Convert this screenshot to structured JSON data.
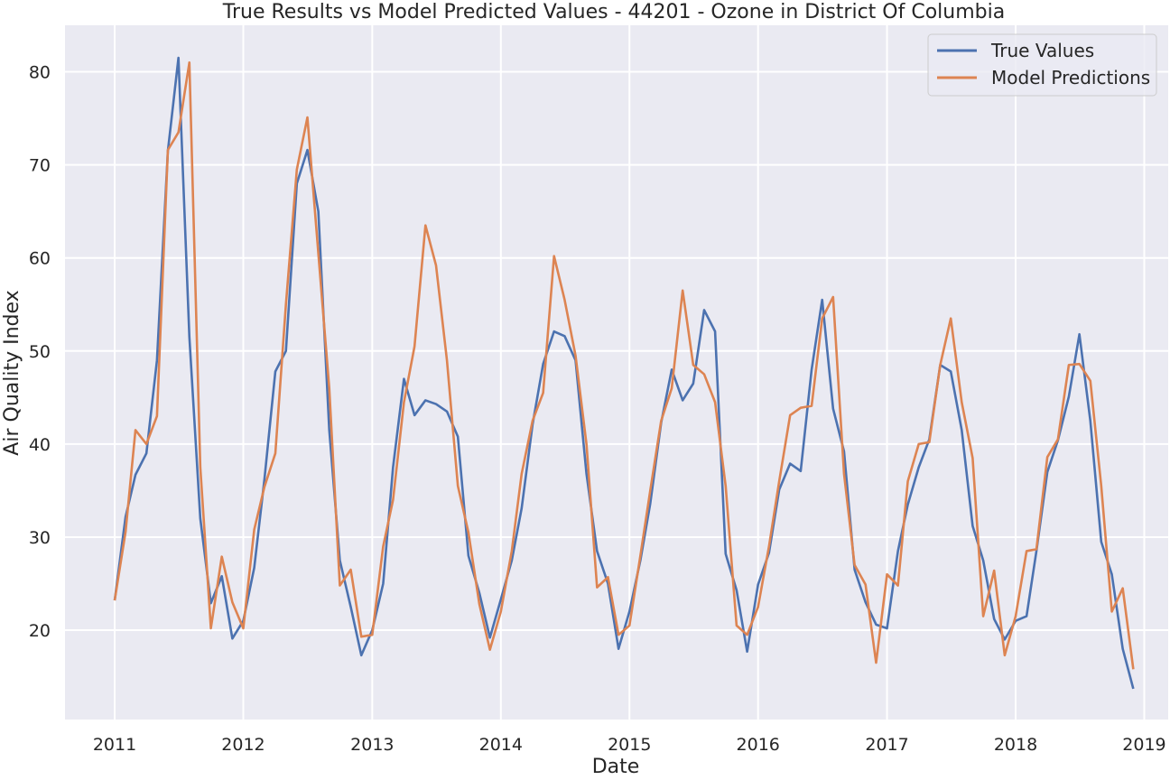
{
  "colors": {
    "plot_background": "#eaeaf2",
    "grid": "#ffffff",
    "true_values": "#4c72b0",
    "model_predictions": "#dd8452"
  },
  "chart_data": {
    "type": "line",
    "title": "True Results vs Model Predicted Values - 44201 - Ozone in District Of Columbia",
    "xlabel": "Date",
    "ylabel": "Air Quality Index",
    "xlim": [
      "2010-08-13",
      "2019-03-10"
    ],
    "ylim": [
      10.4,
      85.0
    ],
    "xticks": [
      "2011-01-01",
      "2012-01-01",
      "2013-01-01",
      "2014-01-01",
      "2015-01-01",
      "2016-01-01",
      "2017-01-01",
      "2018-01-01",
      "2019-01-01"
    ],
    "xtick_labels": [
      "2011",
      "2012",
      "2013",
      "2014",
      "2015",
      "2016",
      "2017",
      "2018",
      "2019"
    ],
    "yticks": [
      20,
      30,
      40,
      50,
      60,
      70,
      80
    ],
    "grid": true,
    "legend_position": "top-right",
    "x": [
      "2011-01",
      "2011-02",
      "2011-03",
      "2011-04",
      "2011-05",
      "2011-06",
      "2011-07",
      "2011-08",
      "2011-09",
      "2011-10",
      "2011-11",
      "2011-12",
      "2012-01",
      "2012-02",
      "2012-03",
      "2012-04",
      "2012-05",
      "2012-06",
      "2012-07",
      "2012-08",
      "2012-09",
      "2012-10",
      "2012-11",
      "2012-12",
      "2013-01",
      "2013-02",
      "2013-03",
      "2013-04",
      "2013-05",
      "2013-06",
      "2013-07",
      "2013-08",
      "2013-09",
      "2013-10",
      "2013-11",
      "2013-12",
      "2014-01",
      "2014-02",
      "2014-03",
      "2014-04",
      "2014-05",
      "2014-06",
      "2014-07",
      "2014-08",
      "2014-09",
      "2014-10",
      "2014-11",
      "2014-12",
      "2015-01",
      "2015-02",
      "2015-03",
      "2015-04",
      "2015-05",
      "2015-06",
      "2015-07",
      "2015-08",
      "2015-09",
      "2015-10",
      "2015-11",
      "2015-12",
      "2016-01",
      "2016-02",
      "2016-03",
      "2016-04",
      "2016-05",
      "2016-06",
      "2016-07",
      "2016-08",
      "2016-09",
      "2016-10",
      "2016-11",
      "2016-12",
      "2017-01",
      "2017-02",
      "2017-03",
      "2017-04",
      "2017-05",
      "2017-06",
      "2017-07",
      "2017-08",
      "2017-09",
      "2017-10",
      "2017-11",
      "2017-12",
      "2018-01",
      "2018-02",
      "2018-03",
      "2018-04",
      "2018-05",
      "2018-06",
      "2018-07",
      "2018-08",
      "2018-09",
      "2018-10",
      "2018-11",
      "2018-12"
    ],
    "series": [
      {
        "name": "True Values",
        "values": [
          23.2,
          32.2,
          36.7,
          39.0,
          49.0,
          71.5,
          81.5,
          51.5,
          32.0,
          22.9,
          25.8,
          19.1,
          21.0,
          26.7,
          36.2,
          47.8,
          50.0,
          68.0,
          71.6,
          65.0,
          41.5,
          27.5,
          22.5,
          17.3,
          20.0,
          25.0,
          37.5,
          47.0,
          43.1,
          44.7,
          44.3,
          43.5,
          40.8,
          28.0,
          24.0,
          19.2,
          23.3,
          27.5,
          33.1,
          42.1,
          48.6,
          52.1,
          51.6,
          49.0,
          36.8,
          28.5,
          25.0,
          18.0,
          22.0,
          27.5,
          33.6,
          42.3,
          48.0,
          44.7,
          46.5,
          54.4,
          52.1,
          28.2,
          24.3,
          17.7,
          24.9,
          28.3,
          35.1,
          37.9,
          37.1,
          48.0,
          55.5,
          43.8,
          39.2,
          26.5,
          23.0,
          20.6,
          20.2,
          28.5,
          33.5,
          37.5,
          40.5,
          48.5,
          47.8,
          41.5,
          31.2,
          27.5,
          21.2,
          19.0,
          21.0,
          21.5,
          28.5,
          37.0,
          40.4,
          45.1,
          51.8,
          42.5,
          29.5,
          26.0,
          18.0,
          13.7
        ]
      },
      {
        "name": "Model Predictions",
        "values": [
          23.2,
          30.6,
          41.5,
          40.0,
          43.0,
          71.6,
          73.5,
          81.0,
          37.5,
          20.2,
          27.9,
          23.0,
          20.2,
          30.8,
          35.4,
          39.0,
          55.0,
          69.5,
          75.1,
          60.5,
          46.0,
          24.8,
          26.5,
          19.3,
          19.5,
          29.0,
          34.0,
          44.5,
          50.5,
          63.5,
          59.2,
          49.0,
          35.5,
          30.5,
          22.8,
          17.9,
          22.0,
          28.5,
          36.8,
          42.5,
          45.5,
          60.2,
          55.5,
          49.5,
          40.0,
          24.6,
          25.7,
          19.5,
          20.5,
          28.0,
          35.0,
          42.5,
          46.0,
          56.5,
          48.5,
          47.5,
          44.5,
          35.5,
          20.5,
          19.5,
          22.5,
          29.0,
          36.0,
          43.1,
          43.9,
          44.1,
          53.5,
          55.8,
          36.8,
          27.0,
          24.9,
          16.5,
          26.0,
          24.8,
          36.0,
          40.0,
          40.2,
          48.5,
          53.5,
          44.5,
          38.5,
          21.5,
          26.4,
          17.3,
          21.5,
          28.5,
          28.7,
          38.6,
          40.5,
          48.5,
          48.6,
          46.8,
          35.5,
          22.0,
          24.5,
          15.8
        ]
      }
    ]
  }
}
